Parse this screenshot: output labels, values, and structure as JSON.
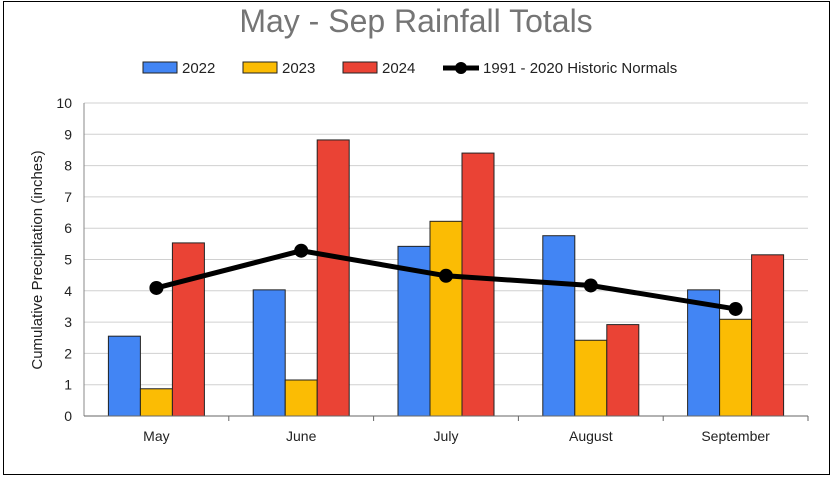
{
  "chart_data": {
    "type": "bar",
    "title": "May - Sep Rainfall Totals",
    "xlabel": "",
    "ylabel": "Cumulative Precipitation (inches)",
    "ylim": [
      0,
      10
    ],
    "yticks": [
      0,
      1,
      2,
      3,
      4,
      5,
      6,
      7,
      8,
      9,
      10
    ],
    "grid": true,
    "legend_placement": "top",
    "categories": [
      "May",
      "June",
      "July",
      "August",
      "September"
    ],
    "series": [
      {
        "name": "2022",
        "type": "bar",
        "color": "#4285f4",
        "values": [
          2.55,
          4.03,
          5.42,
          5.76,
          4.03
        ]
      },
      {
        "name": "2023",
        "type": "bar",
        "color": "#fbbc04",
        "values": [
          0.87,
          1.15,
          6.22,
          2.42,
          3.09
        ]
      },
      {
        "name": "2024",
        "type": "bar",
        "color": "#ea4335",
        "values": [
          5.53,
          8.82,
          8.4,
          2.92,
          5.15
        ]
      },
      {
        "name": "1991 - 2020 Historic Normals",
        "type": "line",
        "color": "#000000",
        "values": [
          4.09,
          5.28,
          4.48,
          4.17,
          3.42
        ]
      }
    ]
  }
}
